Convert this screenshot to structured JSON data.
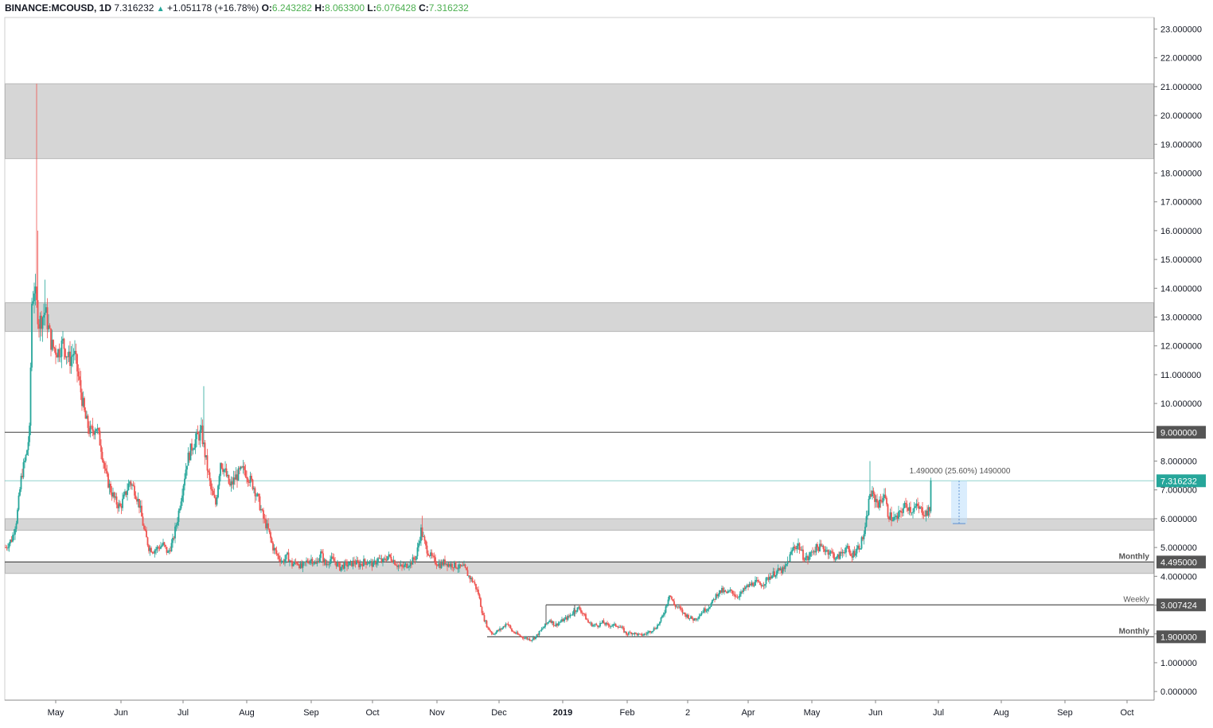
{
  "header": {
    "symbol": "BINANCE:MCOUSD, 1D",
    "last": "7.316232",
    "change": "+1.051178 (+16.78%)",
    "o_label": "O:",
    "o_value": "6.243282",
    "h_label": "H:",
    "h_value": "8.063300",
    "l_label": "L:",
    "l_value": "6.076428",
    "c_label": "C:",
    "c_value": "7.316232"
  },
  "chart_data": {
    "type": "candlestick",
    "symbol": "BINANCE:MCOUSD",
    "interval": "1D",
    "ylim": [
      -0.3,
      23.4
    ],
    "y_ticks": [
      "0.000000",
      "1.000000",
      "2.000000",
      "3.000000",
      "4.000000",
      "5.000000",
      "6.000000",
      "7.000000",
      "8.000000",
      "10.000000",
      "11.000000",
      "12.000000",
      "13.000000",
      "14.000000",
      "15.000000",
      "16.000000",
      "17.000000",
      "18.000000",
      "19.000000",
      "20.000000",
      "21.000000",
      "22.000000",
      "23.000000"
    ],
    "x_ticks": [
      "May",
      "Jun",
      "Jul",
      "Aug",
      "Sep",
      "Oct",
      "Nov",
      "Dec",
      "2019",
      "Feb",
      "2",
      "Apr",
      "May",
      "Jun",
      "Jul",
      "Aug",
      "Sep",
      "Oct"
    ],
    "x_tick_bold": "2019",
    "zones": [
      {
        "low": 18.5,
        "high": 21.1
      },
      {
        "low": 12.5,
        "high": 13.5
      },
      {
        "low": 5.6,
        "high": 6.0
      },
      {
        "low": 4.1,
        "high": 4.5
      }
    ],
    "levels": [
      {
        "value": 9.0,
        "badge": "9.000000",
        "label": ""
      },
      {
        "value": 4.495,
        "badge": "4.495000",
        "label": "Monthly"
      },
      {
        "value": 3.007424,
        "badge": "3.007424",
        "label": "Weekly"
      },
      {
        "value": 1.9,
        "badge": "1.900000",
        "label": "Monthly"
      }
    ],
    "last_price": {
      "value": 7.316232,
      "badge": "7.316232"
    },
    "measure": {
      "from": 5.83,
      "to": 7.32,
      "label": "1.490000 (25.60%) 1490000"
    },
    "path": [
      [
        0,
        5.0
      ],
      [
        8,
        5.3
      ],
      [
        14,
        6.0
      ],
      [
        20,
        7.5
      ],
      [
        26,
        8.2
      ],
      [
        30,
        9.0
      ],
      [
        33,
        13.5
      ],
      [
        36,
        14.0
      ],
      [
        42,
        12.8
      ],
      [
        50,
        13.2
      ],
      [
        58,
        12.0
      ],
      [
        66,
        11.8
      ],
      [
        72,
        12.1
      ],
      [
        80,
        11.5
      ],
      [
        86,
        11.8
      ],
      [
        94,
        10.5
      ],
      [
        100,
        9.5
      ],
      [
        106,
        9.0
      ],
      [
        114,
        9.2
      ],
      [
        120,
        8.5
      ],
      [
        126,
        7.5
      ],
      [
        132,
        7.0
      ],
      [
        138,
        6.6
      ],
      [
        144,
        6.4
      ],
      [
        150,
        6.8
      ],
      [
        156,
        7.3
      ],
      [
        162,
        7.0
      ],
      [
        168,
        6.5
      ],
      [
        174,
        5.6
      ],
      [
        180,
        5.0
      ],
      [
        186,
        4.9
      ],
      [
        192,
        5.0
      ],
      [
        198,
        5.1
      ],
      [
        204,
        4.8
      ],
      [
        210,
        5.2
      ],
      [
        216,
        6.0
      ],
      [
        222,
        7.0
      ],
      [
        228,
        8.0
      ],
      [
        234,
        8.5
      ],
      [
        240,
        8.8
      ],
      [
        246,
        9.0
      ],
      [
        252,
        8.0
      ],
      [
        258,
        7.0
      ],
      [
        264,
        6.5
      ],
      [
        270,
        8.0
      ],
      [
        276,
        7.6
      ],
      [
        282,
        7.1
      ],
      [
        288,
        7.4
      ],
      [
        294,
        7.6
      ],
      [
        300,
        7.7
      ],
      [
        306,
        7.4
      ],
      [
        312,
        7.1
      ],
      [
        318,
        6.6
      ],
      [
        324,
        6.0
      ],
      [
        330,
        5.6
      ],
      [
        336,
        5.0
      ],
      [
        342,
        4.7
      ],
      [
        348,
        4.5
      ],
      [
        354,
        4.7
      ],
      [
        360,
        4.4
      ],
      [
        366,
        4.5
      ],
      [
        372,
        4.3
      ],
      [
        378,
        4.5
      ],
      [
        384,
        4.6
      ],
      [
        390,
        4.4
      ],
      [
        396,
        4.8
      ],
      [
        402,
        4.4
      ],
      [
        408,
        4.6
      ],
      [
        414,
        4.5
      ],
      [
        420,
        4.3
      ],
      [
        426,
        4.4
      ],
      [
        432,
        4.4
      ],
      [
        438,
        4.5
      ],
      [
        444,
        4.4
      ],
      [
        450,
        4.5
      ],
      [
        456,
        4.5
      ],
      [
        462,
        4.4
      ],
      [
        468,
        4.6
      ],
      [
        474,
        4.5
      ],
      [
        480,
        4.7
      ],
      [
        486,
        4.6
      ],
      [
        492,
        4.4
      ],
      [
        498,
        4.3
      ],
      [
        504,
        4.4
      ],
      [
        510,
        4.5
      ],
      [
        516,
        4.7
      ],
      [
        522,
        5.6
      ],
      [
        528,
        5.0
      ],
      [
        534,
        4.7
      ],
      [
        540,
        4.5
      ],
      [
        546,
        4.4
      ],
      [
        552,
        4.5
      ],
      [
        558,
        4.4
      ],
      [
        564,
        4.4
      ],
      [
        570,
        4.3
      ],
      [
        576,
        4.3
      ],
      [
        582,
        4.0
      ],
      [
        588,
        3.8
      ],
      [
        594,
        3.4
      ],
      [
        600,
        2.6
      ],
      [
        606,
        2.2
      ],
      [
        612,
        2.0
      ],
      [
        618,
        2.1
      ],
      [
        624,
        2.2
      ],
      [
        630,
        2.4
      ],
      [
        636,
        2.1
      ],
      [
        642,
        2.0
      ],
      [
        648,
        1.9
      ],
      [
        654,
        1.85
      ],
      [
        660,
        1.8
      ],
      [
        666,
        1.9
      ],
      [
        672,
        2.1
      ],
      [
        678,
        2.3
      ],
      [
        684,
        2.5
      ],
      [
        690,
        2.3
      ],
      [
        696,
        2.4
      ],
      [
        702,
        2.5
      ],
      [
        708,
        2.6
      ],
      [
        714,
        2.8
      ],
      [
        720,
        2.9
      ],
      [
        726,
        2.7
      ],
      [
        732,
        2.4
      ],
      [
        738,
        2.3
      ],
      [
        744,
        2.3
      ],
      [
        750,
        2.4
      ],
      [
        756,
        2.3
      ],
      [
        762,
        2.3
      ],
      [
        768,
        2.3
      ],
      [
        774,
        2.2
      ],
      [
        780,
        2.0
      ],
      [
        786,
        2.05
      ],
      [
        792,
        2.0
      ],
      [
        798,
        1.95
      ],
      [
        804,
        2.0
      ],
      [
        810,
        2.1
      ],
      [
        816,
        2.2
      ],
      [
        822,
        2.4
      ],
      [
        828,
        2.8
      ],
      [
        834,
        3.4
      ],
      [
        840,
        3.0
      ],
      [
        846,
        2.9
      ],
      [
        852,
        2.7
      ],
      [
        858,
        2.6
      ],
      [
        864,
        2.5
      ],
      [
        870,
        2.6
      ],
      [
        876,
        2.8
      ],
      [
        882,
        2.9
      ],
      [
        888,
        3.1
      ],
      [
        894,
        3.4
      ],
      [
        900,
        3.5
      ],
      [
        906,
        3.4
      ],
      [
        912,
        3.5
      ],
      [
        918,
        3.3
      ],
      [
        924,
        3.4
      ],
      [
        930,
        3.6
      ],
      [
        936,
        3.7
      ],
      [
        942,
        3.8
      ],
      [
        948,
        3.7
      ],
      [
        954,
        3.8
      ],
      [
        960,
        4.0
      ],
      [
        966,
        4.1
      ],
      [
        972,
        4.2
      ],
      [
        978,
        4.2
      ],
      [
        984,
        4.6
      ],
      [
        990,
        5.0
      ],
      [
        996,
        5.1
      ],
      [
        1002,
        4.7
      ],
      [
        1008,
        4.6
      ],
      [
        1014,
        4.9
      ],
      [
        1020,
        5.0
      ],
      [
        1026,
        5.0
      ],
      [
        1032,
        4.9
      ],
      [
        1038,
        4.8
      ],
      [
        1044,
        4.6
      ],
      [
        1050,
        4.8
      ],
      [
        1056,
        5.0
      ],
      [
        1062,
        4.7
      ],
      [
        1068,
        4.9
      ],
      [
        1074,
        5.1
      ],
      [
        1080,
        5.6
      ],
      [
        1086,
        6.9
      ],
      [
        1092,
        6.7
      ],
      [
        1098,
        6.5
      ],
      [
        1104,
        6.9
      ],
      [
        1108,
        6.2
      ],
      [
        1114,
        6.0
      ],
      [
        1120,
        6.0
      ],
      [
        1126,
        6.3
      ],
      [
        1132,
        6.5
      ],
      [
        1138,
        6.3
      ],
      [
        1144,
        6.4
      ],
      [
        1150,
        6.3
      ],
      [
        1156,
        6.2
      ],
      [
        1161,
        6.25
      ],
      [
        1163,
        7.32
      ]
    ],
    "spikes": [
      {
        "x": 39,
        "high": 21.1
      },
      {
        "x": 41,
        "high": 16.0
      },
      {
        "x": 50,
        "high": 14.3
      },
      {
        "x": 249,
        "high": 10.6
      },
      {
        "x": 524,
        "high": 6.1
      },
      {
        "x": 1086,
        "high": 8.0
      },
      {
        "x": 1162,
        "high": 8.06
      }
    ],
    "colors": {
      "up": "#26a69a",
      "down": "#ef5350",
      "zone": "#d6d6d6",
      "level": "#555555",
      "last": "#26a69a"
    }
  }
}
